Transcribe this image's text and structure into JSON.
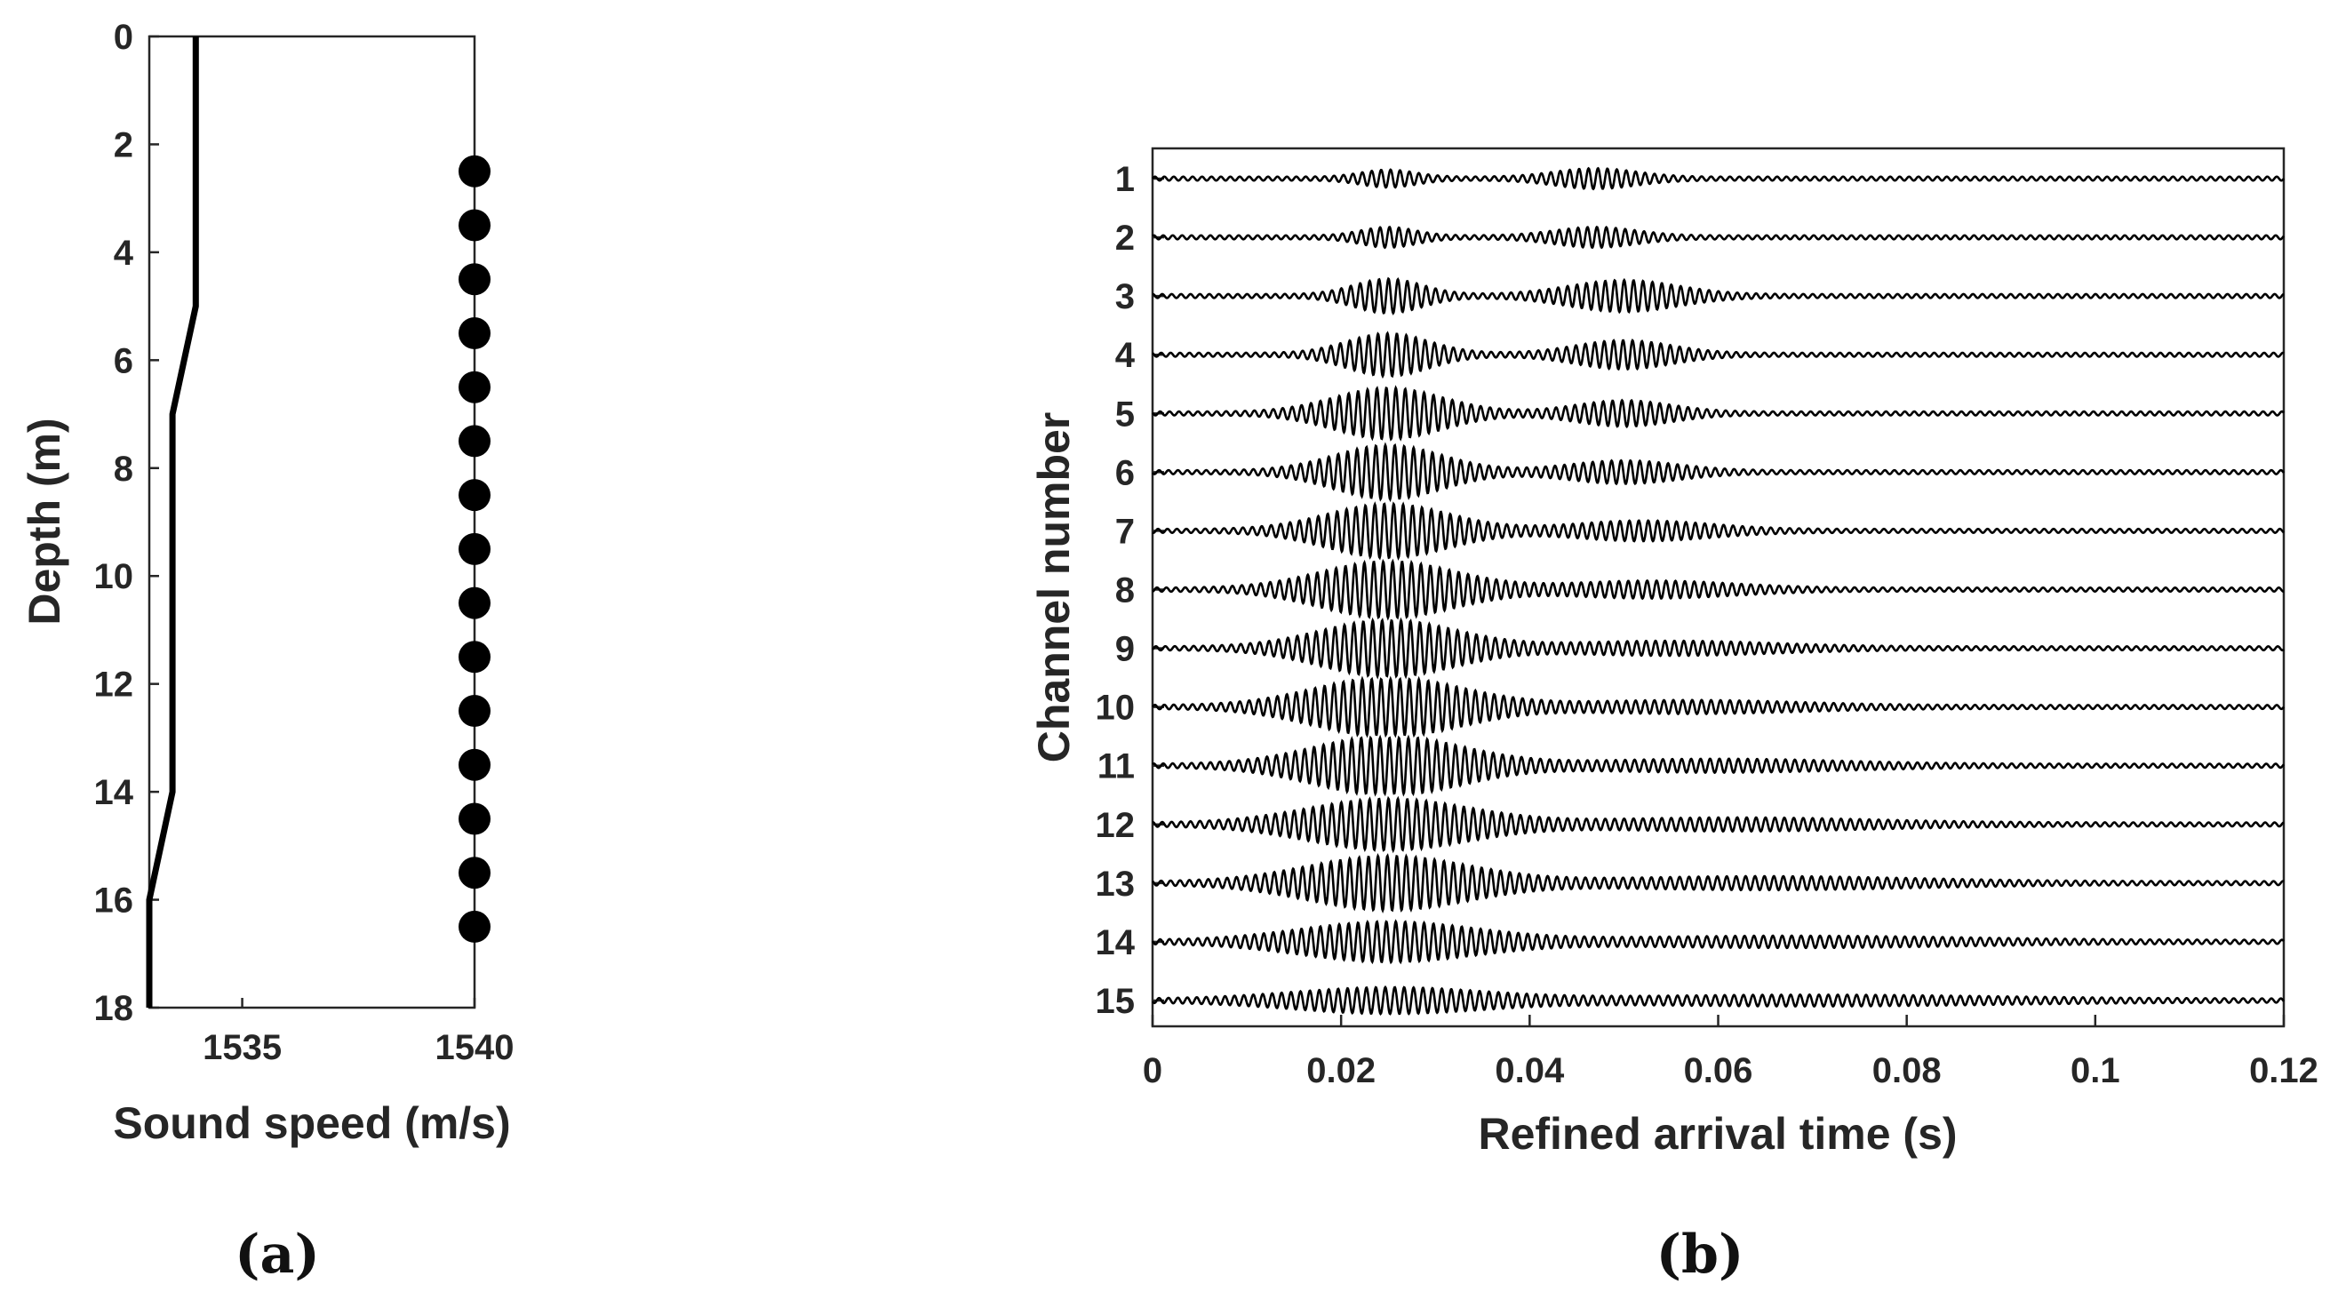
{
  "colors": {
    "ink": "#000000",
    "text": "#262626",
    "background": "#ffffff"
  },
  "chart_data": [
    {
      "panel_label": "(a)",
      "type": "line",
      "xlabel": "Sound speed (m/s)",
      "ylabel": "Depth (m)",
      "xlim": [
        1533,
        1540
      ],
      "ylim": [
        0,
        18
      ],
      "y_reversed": true,
      "xticks": [
        1535,
        1540
      ],
      "xtick_labels": [
        "1535",
        "1540"
      ],
      "yticks": [
        0,
        2,
        4,
        6,
        8,
        10,
        12,
        14,
        16,
        18
      ],
      "ytick_labels": [
        "0",
        "2",
        "4",
        "6",
        "8",
        "10",
        "12",
        "14",
        "16",
        "18"
      ],
      "grid": false,
      "series": [
        {
          "name": "sound speed profile",
          "style": "line",
          "x": [
            1534,
            1534,
            1533.5,
            1533.5,
            1533,
            1533
          ],
          "y": [
            0,
            5,
            7,
            14,
            16,
            18
          ]
        },
        {
          "name": "receiver depths",
          "style": "markers",
          "x": [
            1540,
            1540,
            1540,
            1540,
            1540,
            1540,
            1540,
            1540,
            1540,
            1540,
            1540,
            1540,
            1540,
            1540,
            1540
          ],
          "y": [
            2.5,
            3.5,
            4.5,
            5.5,
            6.5,
            7.5,
            8.5,
            9.5,
            10.5,
            11.5,
            12.5,
            13.5,
            14.5,
            15.5,
            16.5
          ]
        }
      ]
    },
    {
      "panel_label": "(b)",
      "type": "line",
      "xlabel": "Refined arrival time (s)",
      "ylabel": "Channel number",
      "xlim": [
        0,
        0.12
      ],
      "xticks": [
        0,
        0.02,
        0.04,
        0.06,
        0.08,
        0.1,
        0.12
      ],
      "xtick_labels": [
        "0",
        "0.02",
        "0.04",
        "0.06",
        "0.08",
        "0.1",
        "0.12"
      ],
      "channels": [
        1,
        2,
        3,
        4,
        5,
        6,
        7,
        8,
        9,
        10,
        11,
        12,
        13,
        14,
        15
      ],
      "ytick_labels": [
        "1",
        "2",
        "3",
        "4",
        "5",
        "6",
        "7",
        "8",
        "9",
        "10",
        "11",
        "12",
        "13",
        "14",
        "15"
      ],
      "grid": false,
      "arrival_1_center_s": 0.025,
      "arrival_1_amplitude": [
        0.25,
        0.3,
        0.55,
        0.7,
        0.85,
        0.9,
        0.9,
        0.95,
        0.95,
        1.0,
        1.0,
        0.85,
        0.9,
        0.65,
        0.4
      ],
      "arrival_1_halfwidth_s": [
        0.004,
        0.004,
        0.005,
        0.006,
        0.008,
        0.008,
        0.009,
        0.01,
        0.01,
        0.011,
        0.011,
        0.012,
        0.012,
        0.013,
        0.014
      ],
      "arrival_2_center_s": [
        0.047,
        0.047,
        0.05,
        0.05,
        0.05,
        0.05,
        0.052,
        0.053,
        0.055,
        0.057,
        0.06,
        0.062,
        0.065,
        0.068,
        0.07
      ],
      "arrival_2_amplitude": [
        0.3,
        0.3,
        0.5,
        0.45,
        0.4,
        0.35,
        0.3,
        0.25,
        0.2,
        0.18,
        0.18,
        0.18,
        0.18,
        0.15,
        0.14
      ],
      "arrival_2_halfwidth_s": [
        0.006,
        0.006,
        0.008,
        0.007,
        0.007,
        0.008,
        0.01,
        0.012,
        0.015,
        0.016,
        0.018,
        0.02,
        0.022,
        0.025,
        0.027
      ],
      "noise_amplitude": 0.07,
      "carrier_frequency_hz": 1000
    }
  ]
}
